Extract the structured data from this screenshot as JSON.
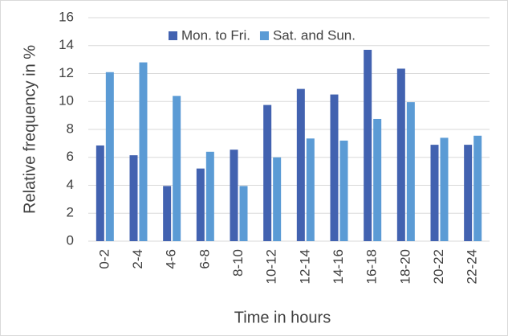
{
  "chart_data": {
    "type": "bar",
    "x_label": "Time in hours",
    "y_label": "Relative frequency in %",
    "categories": [
      "0-2",
      "2-4",
      "4-6",
      "6-8",
      "8-10",
      "10-12",
      "12-14",
      "14-16",
      "16-18",
      "18-20",
      "20-22",
      "22-24"
    ],
    "series": [
      {
        "name": "Mon. to Fri.",
        "color": "#4262b0",
        "values": [
          6.85,
          6.15,
          3.95,
          5.2,
          6.55,
          9.75,
          10.9,
          10.5,
          13.7,
          12.35,
          6.9,
          6.9
        ]
      },
      {
        "name": "Sat. and Sun.",
        "color": "#5b9bd5",
        "values": [
          12.1,
          12.8,
          10.4,
          6.4,
          3.95,
          6.0,
          7.35,
          7.2,
          8.75,
          9.95,
          7.4,
          7.55
        ]
      }
    ],
    "ylim": [
      0,
      16
    ],
    "yticks": [
      0,
      2,
      4,
      6,
      8,
      10,
      12,
      14,
      16
    ],
    "grid": true,
    "legend": "top"
  }
}
